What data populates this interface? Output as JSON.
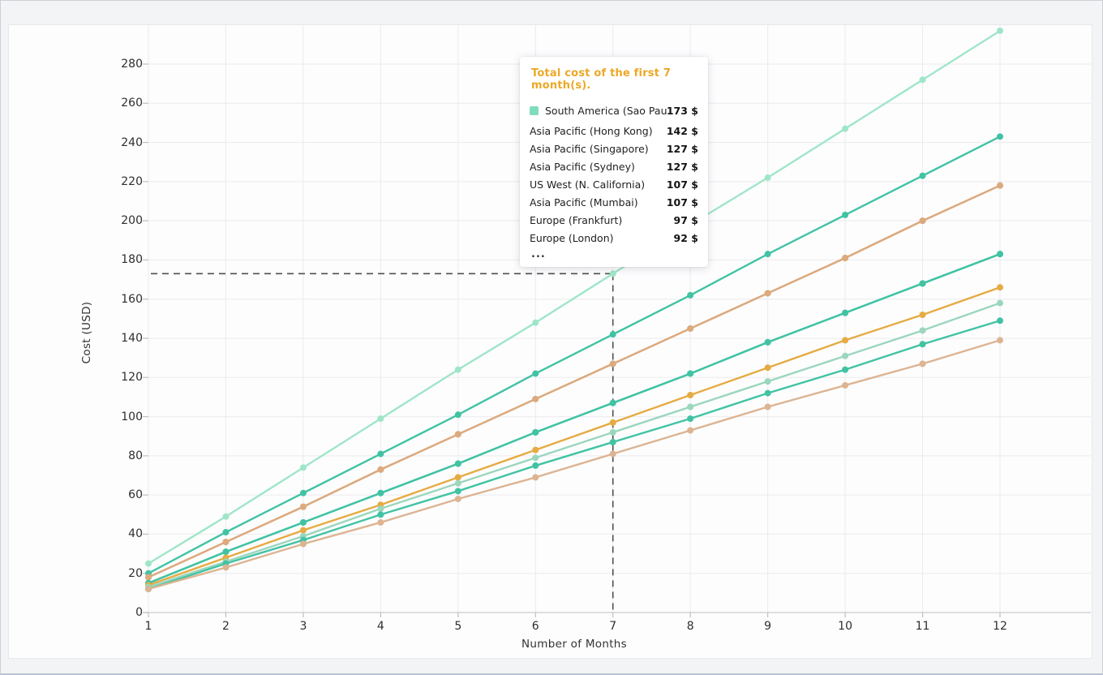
{
  "window": {
    "background": "#f3f4f6",
    "card_background": "#fdfdfe",
    "grid_color": "#ebebee",
    "axis_line_color": "#cbcbd0",
    "tick_text_color": "#2e2e2e",
    "crosshair_color": "#4f4f4f"
  },
  "chart_data": {
    "type": "line",
    "title": "",
    "xlabel": "Number of Months",
    "ylabel": "Cost (USD)",
    "x": [
      1,
      2,
      3,
      4,
      5,
      6,
      7,
      8,
      9,
      10,
      11,
      12
    ],
    "x_tick_labels": [
      "1",
      "2",
      "3",
      "4",
      "5",
      "6",
      "7",
      "8",
      "9",
      "10",
      "11",
      "12"
    ],
    "y_ticks": [
      0,
      20,
      40,
      60,
      80,
      100,
      120,
      140,
      160,
      180,
      200,
      220,
      240,
      260,
      280
    ],
    "xlim": [
      1,
      12
    ],
    "ylim": [
      0,
      300
    ],
    "grid": true,
    "legend_position": "none",
    "markers": "circle",
    "series": [
      {
        "name": "South America (Sao Paulo)",
        "color": "#9fe6c8",
        "values": [
          25,
          49,
          74,
          99,
          124,
          148,
          173,
          198,
          222,
          247,
          272,
          297
        ]
      },
      {
        "name": "Asia Pacific (Hong Kong)",
        "color": "#41c3a3",
        "values": [
          20,
          41,
          61,
          81,
          101,
          122,
          142,
          162,
          183,
          203,
          223,
          243
        ]
      },
      {
        "name": "Asia Pacific (Singapore)",
        "color": "#dcaa7e",
        "values": [
          18,
          36,
          54,
          73,
          91,
          109,
          127,
          145,
          163,
          181,
          200,
          218
        ]
      },
      {
        "name": "Asia Pacific (Sydney)",
        "color": "#dcaa7e",
        "values": [
          18,
          36,
          54,
          73,
          91,
          109,
          127,
          145,
          163,
          181,
          200,
          218
        ]
      },
      {
        "name": "US West (N. California)",
        "color": "#41c3a3",
        "values": [
          15,
          31,
          46,
          61,
          76,
          92,
          107,
          122,
          138,
          153,
          168,
          183
        ]
      },
      {
        "name": "Asia Pacific (Mumbai)",
        "color": "#41c3a3",
        "values": [
          15,
          31,
          46,
          61,
          76,
          92,
          107,
          122,
          138,
          153,
          168,
          183
        ]
      },
      {
        "name": "Europe (Frankfurt)",
        "color": "#e6ab43",
        "values": [
          14,
          28,
          42,
          55,
          69,
          83,
          97,
          111,
          125,
          139,
          152,
          166
        ]
      },
      {
        "name": "Europe (London)",
        "color": "#9bd6bd",
        "values": [
          13,
          26,
          39,
          53,
          66,
          79,
          92,
          105,
          118,
          131,
          144,
          158
        ]
      },
      {
        "name": "",
        "color": "#41c3a3",
        "values": [
          12,
          25,
          37,
          50,
          62,
          75,
          87,
          99,
          112,
          124,
          137,
          149
        ]
      },
      {
        "name": "",
        "color": "#ddb492",
        "values": [
          12,
          23,
          35,
          46,
          58,
          69,
          81,
          93,
          105,
          116,
          127,
          139
        ]
      }
    ],
    "crosshair": {
      "month": 7,
      "value": 173,
      "style": "dashed"
    }
  },
  "tooltip": {
    "title": "Total cost of the first 7 month(s).",
    "title_color": "#eca826",
    "marker_color": "#7fdcbd",
    "rows": [
      {
        "label": "South America (Sao Paulo)",
        "value": "173 $",
        "marker": true
      },
      {
        "label": "Asia Pacific (Hong Kong)",
        "value": "142 $",
        "marker": false
      },
      {
        "label": "Asia Pacific (Singapore)",
        "value": "127 $",
        "marker": false
      },
      {
        "label": "Asia Pacific (Sydney)",
        "value": "127 $",
        "marker": false
      },
      {
        "label": "US West (N. California)",
        "value": "107 $",
        "marker": false
      },
      {
        "label": "Asia Pacific (Mumbai)",
        "value": "107 $",
        "marker": false
      },
      {
        "label": "Europe (Frankfurt)",
        "value": "97 $",
        "marker": false
      },
      {
        "label": "Europe (London)",
        "value": "92 $",
        "marker": false
      }
    ],
    "ellipsis": "..."
  }
}
